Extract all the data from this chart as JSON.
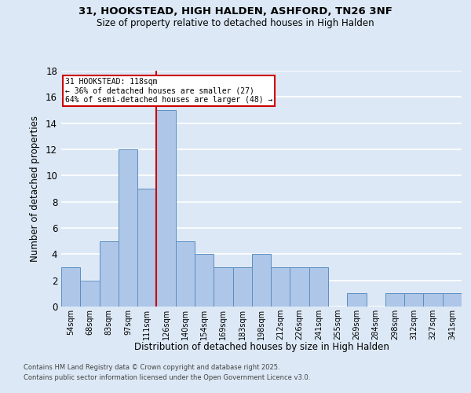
{
  "title_line1": "31, HOOKSTEAD, HIGH HALDEN, ASHFORD, TN26 3NF",
  "title_line2": "Size of property relative to detached houses in High Halden",
  "xlabel": "Distribution of detached houses by size in High Halden",
  "ylabel": "Number of detached properties",
  "footer_line1": "Contains HM Land Registry data © Crown copyright and database right 2025.",
  "footer_line2": "Contains public sector information licensed under the Open Government Licence v3.0.",
  "bin_labels": [
    "54sqm",
    "68sqm",
    "83sqm",
    "97sqm",
    "111sqm",
    "126sqm",
    "140sqm",
    "154sqm",
    "169sqm",
    "183sqm",
    "198sqm",
    "212sqm",
    "226sqm",
    "241sqm",
    "255sqm",
    "269sqm",
    "284sqm",
    "298sqm",
    "312sqm",
    "327sqm",
    "341sqm"
  ],
  "bar_heights": [
    3,
    2,
    5,
    12,
    9,
    15,
    5,
    4,
    3,
    3,
    4,
    3,
    3,
    3,
    0,
    1,
    0,
    1,
    1,
    1,
    1
  ],
  "bar_color": "#aec6e8",
  "bar_edgecolor": "#5a8fc2",
  "background_color": "#dce8f5",
  "grid_color": "#ffffff",
  "property_label": "31 HOOKSTEAD: 118sqm",
  "annotation_line2": "← 36% of detached houses are smaller (27)",
  "annotation_line3": "64% of semi-detached houses are larger (48) →",
  "vline_x_index": 4.5,
  "annotation_box_color": "#ffffff",
  "annotation_box_edgecolor": "#cc0000",
  "ylim": [
    0,
    18
  ],
  "yticks": [
    0,
    2,
    4,
    6,
    8,
    10,
    12,
    14,
    16,
    18
  ]
}
